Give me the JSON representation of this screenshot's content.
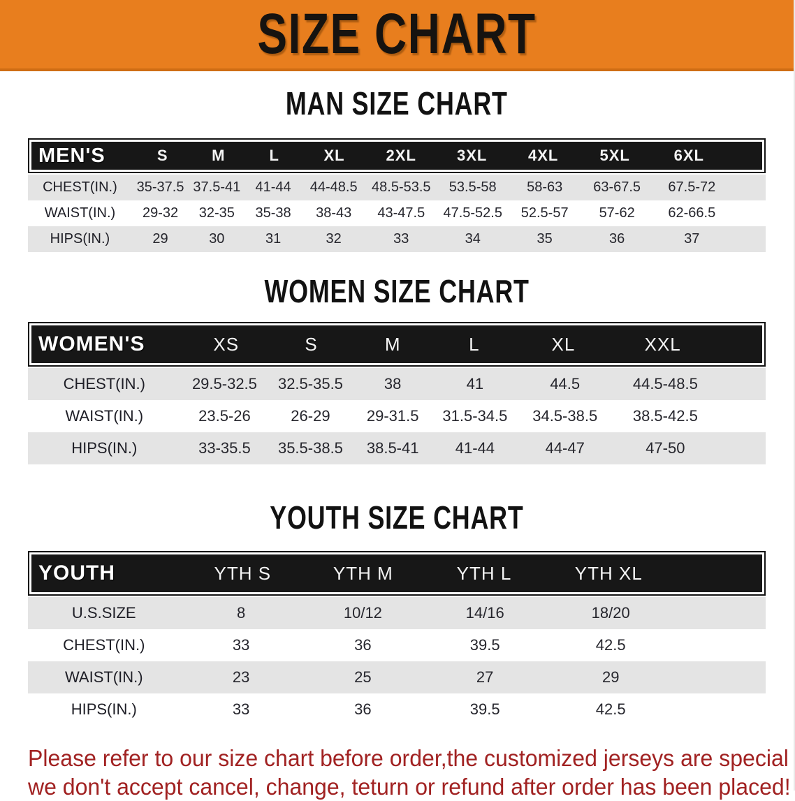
{
  "banner": {
    "title": "SIZE CHART"
  },
  "sections": [
    {
      "id": "men",
      "heading": "MAN SIZE CHART",
      "table": {
        "header_label": "MEN'S",
        "columns": [
          "S",
          "M",
          "L",
          "XL",
          "2XL",
          "3XL",
          "4XL",
          "5XL",
          "6XL"
        ],
        "rows": [
          {
            "label": "CHEST(IN.)",
            "values": [
              "35-37.5",
              "37.5-41",
              "41-44",
              "44-48.5",
              "48.5-53.5",
              "53.5-58",
              "58-63",
              "63-67.5",
              "67.5-72"
            ]
          },
          {
            "label": "WAIST(IN.)",
            "values": [
              "29-32",
              "32-35",
              "35-38",
              "38-43",
              "43-47.5",
              "47.5-52.5",
              "52.5-57",
              "57-62",
              "62-66.5"
            ]
          },
          {
            "label": "HIPS(IN.)",
            "values": [
              "29",
              "30",
              "31",
              "32",
              "33",
              "34",
              "35",
              "36",
              "37"
            ]
          }
        ]
      }
    },
    {
      "id": "women",
      "heading": "WOMEN SIZE CHART",
      "table": {
        "header_label": "WOMEN'S",
        "columns": [
          "XS",
          "S",
          "M",
          "L",
          "XL",
          "XXL"
        ],
        "rows": [
          {
            "label": "CHEST(IN.)",
            "values": [
              "29.5-32.5",
              "32.5-35.5",
              "38",
              "41",
              "44.5",
              "44.5-48.5"
            ]
          },
          {
            "label": "WAIST(IN.)",
            "values": [
              "23.5-26",
              "26-29",
              "29-31.5",
              "31.5-34.5",
              "34.5-38.5",
              "38.5-42.5"
            ]
          },
          {
            "label": "HIPS(IN.)",
            "values": [
              "33-35.5",
              "35.5-38.5",
              "38.5-41",
              "41-44",
              "44-47",
              "47-50"
            ]
          }
        ]
      }
    },
    {
      "id": "youth",
      "heading": "YOUTH SIZE CHART",
      "table": {
        "header_label": "YOUTH",
        "columns": [
          "YTH S",
          "YTH M",
          "YTH L",
          "YTH XL"
        ],
        "rows": [
          {
            "label": "U.S.SIZE",
            "values": [
              "8",
              "10/12",
              "14/16",
              "18/20"
            ]
          },
          {
            "label": "CHEST(IN.)",
            "values": [
              "33",
              "36",
              "39.5",
              "42.5"
            ]
          },
          {
            "label": "WAIST(IN.)",
            "values": [
              "23",
              "25",
              "27",
              "29"
            ]
          },
          {
            "label": "HIPS(IN.)",
            "values": [
              "33",
              "36",
              "39.5",
              "42.5"
            ]
          }
        ]
      }
    }
  ],
  "footer": {
    "lines": [
      "Please refer to our size chart before order,the customized jerseys are special products,",
      "we don't accept cancel, change, teturn or refund after order has been placed!"
    ]
  },
  "colors": {
    "accent_orange": "#E87E1E",
    "banner_border": "#cf6d14",
    "header_bar_black": "#171717",
    "row_stripe_gray": "#E4E4E4",
    "body_text": "#26262d",
    "notice_red": "#A12222"
  }
}
